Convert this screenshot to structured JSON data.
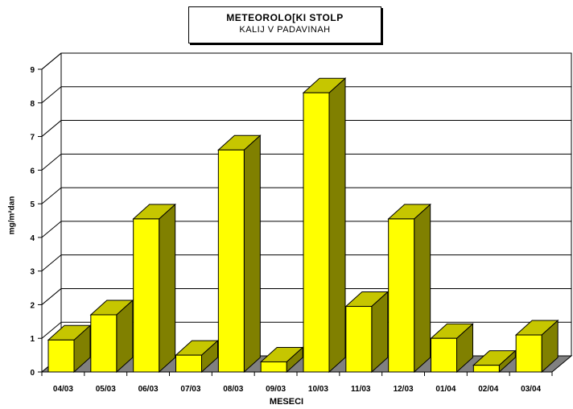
{
  "chart_data": {
    "type": "bar",
    "title": "METEOROLO[KI STOLP",
    "subtitle": "KALIJ V PADAVINAH",
    "xlabel": "MESECI",
    "ylabel": "mg/m²dan",
    "ylim": [
      0,
      9
    ],
    "yticks": [
      0,
      1,
      2,
      3,
      4,
      5,
      6,
      7,
      8,
      9
    ],
    "grid": true,
    "categories": [
      "04/03",
      "05/03",
      "06/03",
      "07/03",
      "08/03",
      "09/03",
      "10/03",
      "11/03",
      "12/03",
      "01/04",
      "02/04",
      "03/04"
    ],
    "values": [
      0.95,
      1.7,
      4.55,
      0.5,
      6.6,
      0.3,
      8.3,
      1.95,
      4.55,
      1.0,
      0.2,
      1.1
    ],
    "colors": {
      "bar_front": "#ffff00",
      "bar_side": "#808000",
      "bar_top": "#c6c600",
      "floor": "#808080"
    }
  }
}
